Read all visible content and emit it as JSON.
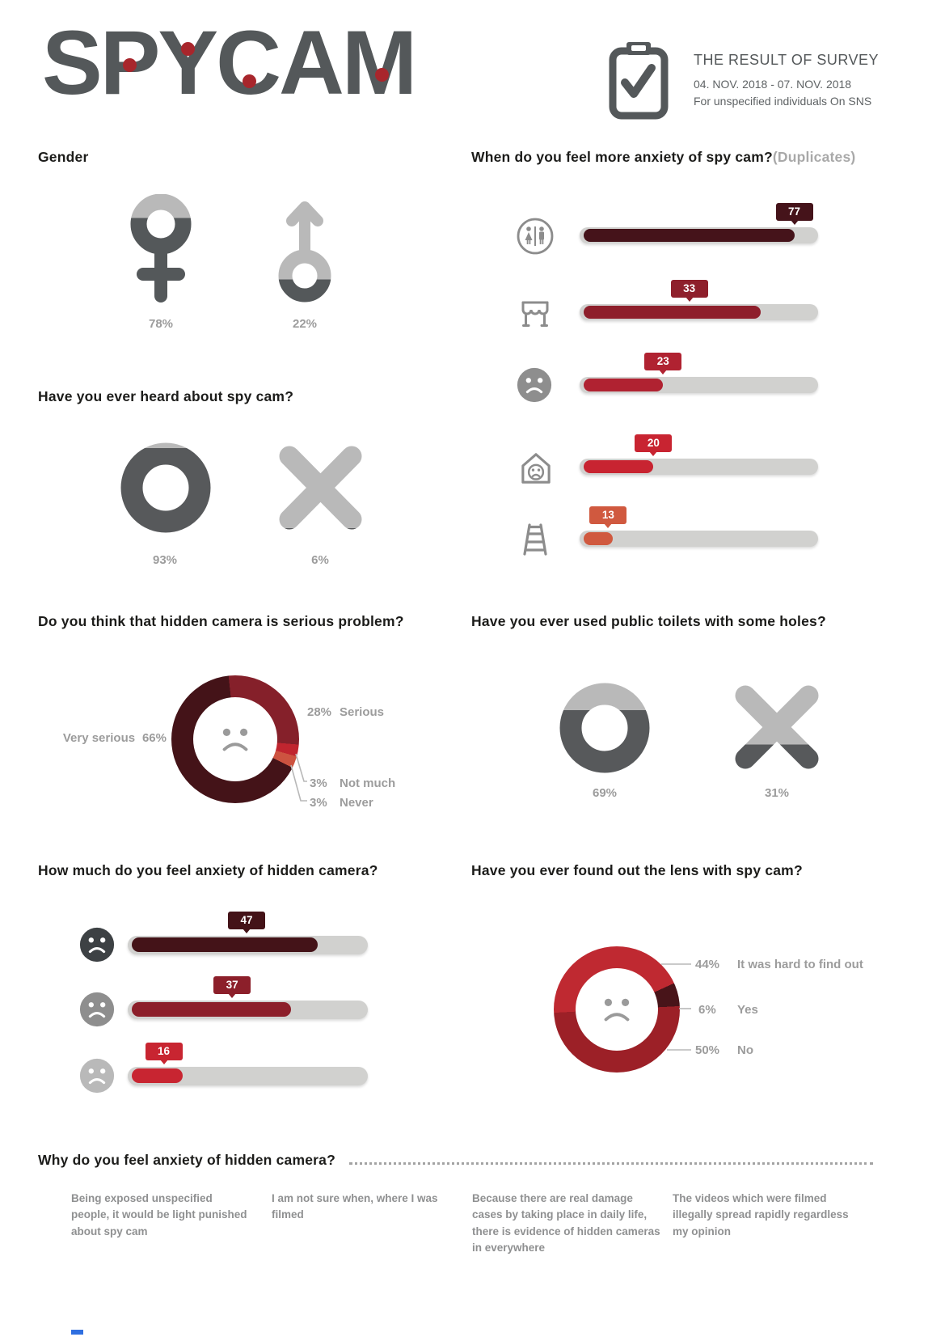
{
  "header": {
    "logo_text": "SPYCAM",
    "survey": {
      "title": "THE RESULT OF SURVEY",
      "dates": "04. NOV. 2018 - 07. NOV. 2018",
      "audience": "For unspecified individuals On SNS"
    }
  },
  "colors": {
    "dark_gray": "#54585a",
    "mid_gray": "#8c8c8c",
    "light_gray": "#b9b9b9",
    "track_gray": "#d1d1cf",
    "label_gray": "#9c9c9c",
    "logo_dot_red": "#a8262c",
    "maroon": "#441318",
    "dark_red": "#8e1f2b",
    "crimson": "#b02231",
    "red": "#c82431",
    "orange_red": "#d0593f",
    "bright_red": "#bf2931"
  },
  "sections": {
    "gender": {
      "heading": "Gender"
    },
    "anxiety_when": {
      "heading": "When do you feel more anxiety of spy cam?",
      "heading_suffix": "(Duplicates)"
    },
    "heard": {
      "heading": "Have you ever heard about spy cam?"
    },
    "serious": {
      "heading": "Do you think that hidden camera is serious problem?"
    },
    "toilets": {
      "heading": "Have you ever used public toilets with some holes?"
    },
    "anxiety_level": {
      "heading": "How much do you feel anxiety of hidden camera?"
    },
    "lens": {
      "heading": "Have you ever found out the lens with spy cam?"
    },
    "why": {
      "heading": "Why do you feel anxiety of hidden camera?",
      "reasons": [
        "Being exposed unspecified people, it would be light punished about spy cam",
        "I am not sure when, where I was filmed",
        "Because there are real damage cases by taking place in daily life, there is evidence of hidden cameras in everywhere",
        "The videos which were filmed illegally spread rapidly regardless my opinion"
      ]
    }
  },
  "chart_data": [
    {
      "id": "gender",
      "type": "pictogram",
      "title": "Gender",
      "categories": [
        "Female",
        "Male"
      ],
      "values": [
        78,
        22
      ],
      "value_labels": [
        "78%",
        "22%"
      ],
      "unit": "%"
    },
    {
      "id": "anxiety_when",
      "type": "bar",
      "title": "When do you feel more anxiety of spy cam? (Duplicates)",
      "categories": [
        "Public restroom",
        "Store",
        "Uncomfortable place",
        "Home",
        "Stairs"
      ],
      "icons": [
        "restroom-icon",
        "store-icon",
        "sad-face-icon",
        "house-icon",
        "ladder-icon"
      ],
      "values": [
        77,
        33,
        23,
        20,
        13
      ],
      "colors": [
        "#45131a",
        "#8e1f2b",
        "#b02231",
        "#c82431",
        "#d0593f"
      ],
      "xlim": [
        0,
        100
      ],
      "layout": {
        "fill_pct": [
          90,
          76,
          35,
          31,
          14
        ],
        "badge_pct": [
          90,
          46,
          35,
          31,
          12
        ]
      }
    },
    {
      "id": "heard",
      "type": "pictogram",
      "title": "Have you ever heard about spy cam?",
      "categories": [
        "Yes (O)",
        "No (X)"
      ],
      "values": [
        93,
        6
      ],
      "value_labels": [
        "93%",
        "6%"
      ],
      "unit": "%"
    },
    {
      "id": "serious",
      "type": "donut",
      "title": "Do you think that hidden camera is serious problem?",
      "segments": [
        {
          "label": "Serious",
          "value": 28,
          "pct_label": "28%",
          "color": "#85202a"
        },
        {
          "label": "Not much",
          "value": 3,
          "pct_label": "3%",
          "color": "#c0252f"
        },
        {
          "label": "Never",
          "value": 3,
          "pct_label": "3%",
          "color": "#cd5340"
        },
        {
          "label": "Very serious",
          "value": 66,
          "pct_label": "66%",
          "color": "#441318"
        }
      ],
      "start_deg": -6
    },
    {
      "id": "toilets",
      "type": "pictogram",
      "title": "Have you ever used public toilets with some holes?",
      "categories": [
        "Yes (O)",
        "No (X)"
      ],
      "values": [
        69,
        31
      ],
      "value_labels": [
        "69%",
        "31%"
      ],
      "unit": "%"
    },
    {
      "id": "anxiety_level",
      "type": "bar",
      "title": "How much do you feel anxiety of hidden camera?",
      "categories": [
        "Very anxious",
        "Anxious",
        "A little anxious"
      ],
      "icons": [
        "sad-face-dark-icon",
        "sad-face-mid-icon",
        "sad-face-light-icon"
      ],
      "values": [
        47,
        37,
        16
      ],
      "colors": [
        "#441318",
        "#8c1f2a",
        "#c82531"
      ],
      "xlim": [
        0,
        100
      ],
      "layout": {
        "fill_pct": [
          79,
          68,
          23
        ],
        "badge_pct": [
          49.5,
          43.5,
          15
        ],
        "icon_colors": [
          "#3d4144",
          "#8e8e8e",
          "#b9b9b9"
        ]
      }
    },
    {
      "id": "lens",
      "type": "donut",
      "title": "Have you ever found out the lens with spy cam?",
      "segments": [
        {
          "label": "It was hard to find out",
          "value": 44,
          "pct_label": "44%",
          "color": "#bf2931"
        },
        {
          "label": "Yes",
          "value": 6,
          "pct_label": "6%",
          "color": "#481419"
        },
        {
          "label": "No",
          "value": 50,
          "pct_label": "50%",
          "color": "#9c2027"
        }
      ],
      "start_deg": 267
    }
  ]
}
